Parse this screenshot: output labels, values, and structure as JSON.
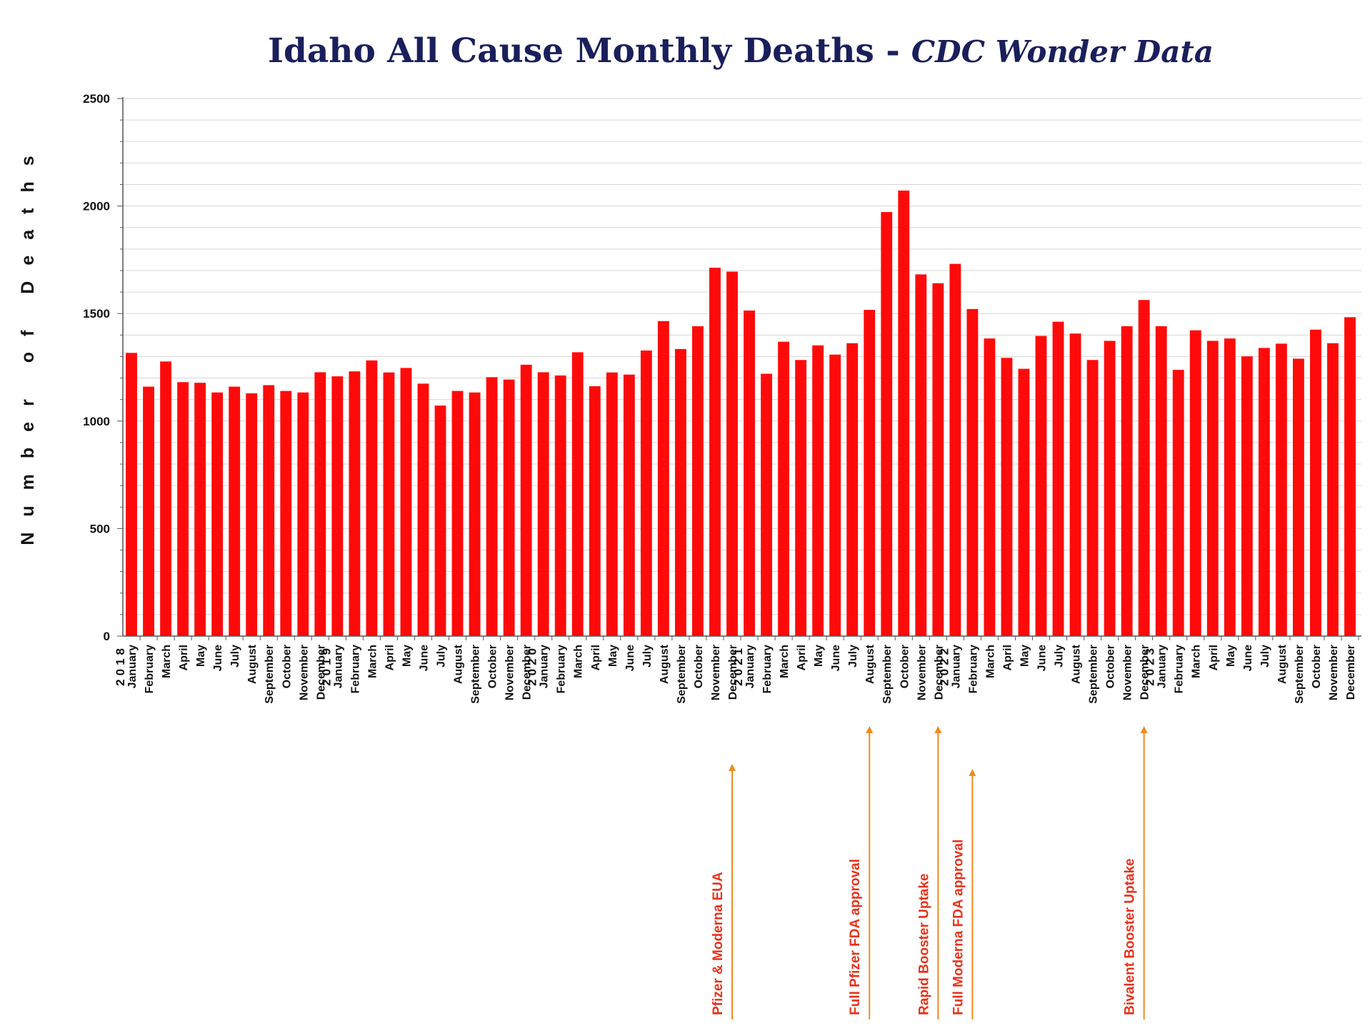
{
  "chart_data": {
    "type": "bar",
    "title": "Idaho All Cause Monthly Deaths -",
    "subtitle": "CDC Wonder Data",
    "ylabel": "Number of Deaths",
    "xlabel": "",
    "ylim": [
      0,
      2500
    ],
    "yticks": [
      0,
      500,
      1000,
      1500,
      2000,
      2500
    ],
    "grid": true,
    "legend": "none",
    "color": "#ff0a0a",
    "categories": [
      "January",
      "February",
      "March",
      "April",
      "May",
      "June",
      "July",
      "August",
      "September",
      "October",
      "November",
      "December",
      "January",
      "February",
      "March",
      "April",
      "May",
      "June",
      "July",
      "August",
      "September",
      "October",
      "November",
      "December",
      "January",
      "February",
      "March",
      "April",
      "May",
      "June",
      "July",
      "August",
      "September",
      "October",
      "November",
      "December",
      "January",
      "February",
      "March",
      "April",
      "May",
      "June",
      "July",
      "August",
      "September",
      "October",
      "November",
      "December",
      "January",
      "February",
      "March",
      "April",
      "May",
      "June",
      "July",
      "August",
      "September",
      "October",
      "November",
      "December",
      "January",
      "February",
      "March",
      "April",
      "May",
      "June",
      "July",
      "August",
      "September",
      "October",
      "November",
      "December"
    ],
    "years": [
      {
        "label": "2018",
        "start_index": 0
      },
      {
        "label": "2019",
        "start_index": 12
      },
      {
        "label": "2020",
        "start_index": 24
      },
      {
        "label": "2021",
        "start_index": 36
      },
      {
        "label": "2022",
        "start_index": 48
      },
      {
        "label": "2023",
        "start_index": 60
      }
    ],
    "values": [
      1317,
      1160,
      1277,
      1181,
      1178,
      1133,
      1160,
      1129,
      1167,
      1140,
      1133,
      1227,
      1208,
      1231,
      1282,
      1226,
      1247,
      1174,
      1072,
      1140,
      1133,
      1204,
      1193,
      1262,
      1227,
      1212,
      1320,
      1162,
      1226,
      1216,
      1328,
      1465,
      1335,
      1441,
      1713,
      1695,
      1514,
      1220,
      1369,
      1284,
      1352,
      1309,
      1362,
      1517,
      1972,
      2072,
      1682,
      1641,
      1731,
      1521,
      1384,
      1294,
      1243,
      1396,
      1462,
      1407,
      1284,
      1373,
      1441,
      1563,
      1441,
      1238,
      1422,
      1373,
      1384,
      1301,
      1340,
      1360,
      1290,
      1425,
      1362,
      1483
    ],
    "annotations": [
      {
        "text": "Pfizer & Moderna EUA",
        "index": 35
      },
      {
        "text": "Full Pfizer FDA approval",
        "index": 43
      },
      {
        "text": "Rapid Booster Uptake",
        "index": 47
      },
      {
        "text": "Full Moderna FDA approval",
        "index": 49
      },
      {
        "text": "Bivalent Booster Uptake",
        "index": 59
      }
    ],
    "annotation_color": "#e8321c",
    "arrow_color": "#f28a1e"
  }
}
